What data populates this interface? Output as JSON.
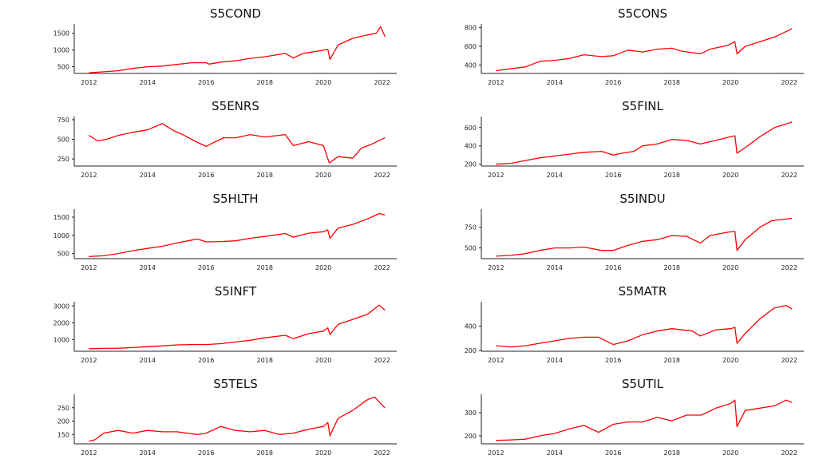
{
  "colors": {
    "line": "#ff0000",
    "axis": "#222222"
  },
  "chart_data": [
    {
      "type": "line",
      "title": "S5COND",
      "xlim": [
        2011.5,
        2022.5
      ],
      "ylim": [
        300,
        1780
      ],
      "xticks": [
        2012,
        2014,
        2016,
        2018,
        2020,
        2022
      ],
      "yticks": [
        500,
        1000,
        1500
      ],
      "series": [
        {
          "x": [
            2012.0,
            2012.5,
            2013.0,
            2013.5,
            2014.0,
            2014.5,
            2015.0,
            2015.5,
            2016.0,
            2016.1,
            2016.5,
            2017.0,
            2017.5,
            2018.0,
            2018.7,
            2018.97,
            2019.3,
            2019.9,
            2020.15,
            2020.22,
            2020.5,
            2021.0,
            2021.5,
            2021.8,
            2021.95,
            2022.1
          ],
          "y": [
            320,
            350,
            380,
            450,
            500,
            520,
            570,
            620,
            620,
            580,
            640,
            680,
            750,
            800,
            900,
            760,
            900,
            980,
            1020,
            720,
            1150,
            1350,
            1450,
            1500,
            1700,
            1400
          ]
        }
      ]
    },
    {
      "type": "line",
      "title": "S5CONS",
      "xlim": [
        2011.5,
        2022.5
      ],
      "ylim": [
        310,
        840
      ],
      "xticks": [
        2012,
        2014,
        2016,
        2018,
        2020,
        2022
      ],
      "yticks": [
        400,
        600,
        800
      ],
      "series": [
        {
          "x": [
            2012.0,
            2012.5,
            2013.0,
            2013.5,
            2014.0,
            2014.5,
            2015.0,
            2015.6,
            2016.0,
            2016.5,
            2017.0,
            2017.5,
            2018.0,
            2018.3,
            2018.97,
            2019.3,
            2019.9,
            2020.15,
            2020.22,
            2020.5,
            2021.0,
            2021.5,
            2021.9,
            2022.1
          ],
          "y": [
            340,
            360,
            380,
            440,
            450,
            470,
            510,
            490,
            500,
            560,
            540,
            570,
            580,
            550,
            520,
            570,
            610,
            650,
            520,
            600,
            650,
            700,
            760,
            790
          ]
        }
      ]
    },
    {
      "type": "line",
      "title": "S5ENRS",
      "xlim": [
        2011.5,
        2022.5
      ],
      "ylim": [
        160,
        790
      ],
      "xticks": [
        2012,
        2014,
        2016,
        2018,
        2020,
        2022
      ],
      "yticks": [
        250,
        500,
        750
      ],
      "series": [
        {
          "x": [
            2012.0,
            2012.3,
            2012.6,
            2013.0,
            2013.5,
            2014.0,
            2014.5,
            2014.9,
            2015.2,
            2015.6,
            2016.0,
            2016.2,
            2016.6,
            2017.0,
            2017.5,
            2018.0,
            2018.7,
            2018.97,
            2019.5,
            2020.0,
            2020.2,
            2020.5,
            2021.0,
            2021.3,
            2021.6,
            2022.1
          ],
          "y": [
            550,
            480,
            500,
            550,
            590,
            620,
            700,
            610,
            560,
            480,
            410,
            450,
            520,
            520,
            560,
            530,
            560,
            420,
            470,
            420,
            200,
            280,
            260,
            390,
            430,
            520
          ]
        }
      ]
    },
    {
      "type": "line",
      "title": "S5FINL",
      "xlim": [
        2011.5,
        2022.5
      ],
      "ylim": [
        180,
        720
      ],
      "xticks": [
        2012,
        2014,
        2016,
        2018,
        2020,
        2022
      ],
      "yticks": [
        200,
        400,
        600
      ],
      "series": [
        {
          "x": [
            2012.0,
            2012.5,
            2013.0,
            2013.5,
            2014.0,
            2014.5,
            2015.0,
            2015.6,
            2016.0,
            2016.3,
            2016.7,
            2017.0,
            2017.5,
            2018.0,
            2018.5,
            2018.97,
            2019.5,
            2020.0,
            2020.15,
            2020.22,
            2020.5,
            2021.0,
            2021.5,
            2021.9,
            2022.1
          ],
          "y": [
            200,
            210,
            240,
            270,
            290,
            310,
            330,
            340,
            300,
            320,
            340,
            400,
            420,
            470,
            460,
            420,
            460,
            500,
            510,
            320,
            380,
            500,
            600,
            640,
            660
          ]
        }
      ]
    },
    {
      "type": "line",
      "title": "S5HLTH",
      "xlim": [
        2011.5,
        2022.5
      ],
      "ylim": [
        360,
        1720
      ],
      "xticks": [
        2012,
        2014,
        2016,
        2018,
        2020,
        2022
      ],
      "yticks": [
        500,
        1000,
        1500
      ],
      "series": [
        {
          "x": [
            2012.0,
            2012.5,
            2013.0,
            2013.5,
            2014.0,
            2014.5,
            2015.0,
            2015.5,
            2015.7,
            2016.0,
            2016.5,
            2017.0,
            2017.5,
            2018.0,
            2018.7,
            2018.97,
            2019.5,
            2020.0,
            2020.15,
            2020.22,
            2020.5,
            2021.0,
            2021.5,
            2021.9,
            2022.1
          ],
          "y": [
            420,
            440,
            500,
            580,
            640,
            700,
            790,
            870,
            900,
            820,
            830,
            850,
            920,
            970,
            1050,
            950,
            1060,
            1100,
            1150,
            920,
            1200,
            1300,
            1450,
            1600,
            1560
          ]
        }
      ]
    },
    {
      "type": "line",
      "title": "S5INDU",
      "xlim": [
        2011.5,
        2022.5
      ],
      "ylim": [
        370,
        970
      ],
      "xticks": [
        2012,
        2014,
        2016,
        2018,
        2020,
        2022
      ],
      "yticks": [
        500,
        750
      ],
      "series": [
        {
          "x": [
            2012.0,
            2012.5,
            2013.0,
            2013.5,
            2014.0,
            2014.5,
            2015.0,
            2015.6,
            2016.0,
            2016.4,
            2017.0,
            2017.5,
            2018.0,
            2018.5,
            2018.97,
            2019.3,
            2019.9,
            2020.15,
            2020.22,
            2020.5,
            2021.0,
            2021.4,
            2021.9,
            2022.1
          ],
          "y": [
            400,
            410,
            430,
            470,
            500,
            500,
            510,
            470,
            470,
            520,
            580,
            600,
            650,
            640,
            560,
            650,
            690,
            700,
            470,
            600,
            750,
            830,
            850,
            860
          ]
        }
      ]
    },
    {
      "type": "line",
      "title": "S5INFT",
      "xlim": [
        2011.5,
        2022.5
      ],
      "ylim": [
        300,
        3250
      ],
      "xticks": [
        2012,
        2014,
        2016,
        2018,
        2020,
        2022
      ],
      "yticks": [
        1000,
        2000,
        3000
      ],
      "series": [
        {
          "x": [
            2012.0,
            2012.5,
            2013.0,
            2013.5,
            2014.0,
            2014.5,
            2015.0,
            2015.5,
            2016.0,
            2016.5,
            2017.0,
            2017.5,
            2018.0,
            2018.7,
            2018.97,
            2019.5,
            2020.0,
            2020.15,
            2020.22,
            2020.5,
            2021.0,
            2021.5,
            2021.9,
            2022.1
          ],
          "y": [
            450,
            470,
            480,
            520,
            570,
            620,
            680,
            700,
            700,
            750,
            850,
            950,
            1100,
            1250,
            1050,
            1350,
            1500,
            1700,
            1300,
            1900,
            2200,
            2500,
            3050,
            2750
          ]
        }
      ]
    },
    {
      "type": "line",
      "title": "S5MATR",
      "xlim": [
        2011.5,
        2022.5
      ],
      "ylim": [
        195,
        600
      ],
      "xticks": [
        2012,
        2014,
        2016,
        2018,
        2020,
        2022
      ],
      "yticks": [
        200,
        400
      ],
      "series": [
        {
          "x": [
            2012.0,
            2012.3,
            2012.5,
            2013.0,
            2013.5,
            2014.0,
            2014.5,
            2015.0,
            2015.5,
            2016.0,
            2016.5,
            2017.0,
            2017.5,
            2018.0,
            2018.7,
            2018.97,
            2019.5,
            2020.0,
            2020.15,
            2020.22,
            2020.5,
            2021.0,
            2021.5,
            2021.9,
            2022.1
          ],
          "y": [
            240,
            235,
            230,
            240,
            260,
            280,
            300,
            310,
            310,
            250,
            280,
            330,
            360,
            380,
            360,
            320,
            370,
            380,
            390,
            260,
            340,
            460,
            550,
            570,
            540
          ]
        }
      ]
    },
    {
      "type": "line",
      "title": "S5TELS",
      "xlim": [
        2011.5,
        2022.5
      ],
      "ylim": [
        115,
        300
      ],
      "xticks": [
        2012,
        2014,
        2016,
        2018,
        2020,
        2022
      ],
      "yticks": [
        150,
        200,
        250
      ],
      "series": [
        {
          "x": [
            2012.0,
            2012.2,
            2012.5,
            2013.0,
            2013.5,
            2014.0,
            2014.5,
            2015.0,
            2015.7,
            2016.0,
            2016.5,
            2017.0,
            2017.5,
            2018.0,
            2018.5,
            2018.97,
            2019.5,
            2020.0,
            2020.15,
            2020.22,
            2020.5,
            2021.0,
            2021.5,
            2021.75,
            2022.0,
            2022.1
          ],
          "y": [
            125,
            130,
            155,
            165,
            155,
            165,
            160,
            160,
            150,
            155,
            180,
            165,
            160,
            165,
            150,
            155,
            170,
            180,
            195,
            145,
            210,
            240,
            280,
            290,
            260,
            250
          ]
        }
      ]
    },
    {
      "type": "line",
      "title": "S5UTIL",
      "xlim": [
        2011.5,
        2022.5
      ],
      "ylim": [
        165,
        380
      ],
      "xticks": [
        2012,
        2014,
        2016,
        2018,
        2020,
        2022
      ],
      "yticks": [
        200,
        300
      ],
      "series": [
        {
          "x": [
            2012.0,
            2012.5,
            2013.0,
            2013.5,
            2014.0,
            2014.5,
            2015.0,
            2015.5,
            2016.0,
            2016.5,
            2017.0,
            2017.5,
            2018.0,
            2018.5,
            2019.0,
            2019.5,
            2020.0,
            2020.15,
            2020.22,
            2020.5,
            2021.0,
            2021.5,
            2021.9,
            2022.1
          ],
          "y": [
            180,
            182,
            185,
            200,
            210,
            230,
            245,
            215,
            250,
            260,
            260,
            280,
            265,
            290,
            290,
            320,
            340,
            355,
            240,
            310,
            320,
            330,
            355,
            345
          ]
        }
      ]
    }
  ]
}
